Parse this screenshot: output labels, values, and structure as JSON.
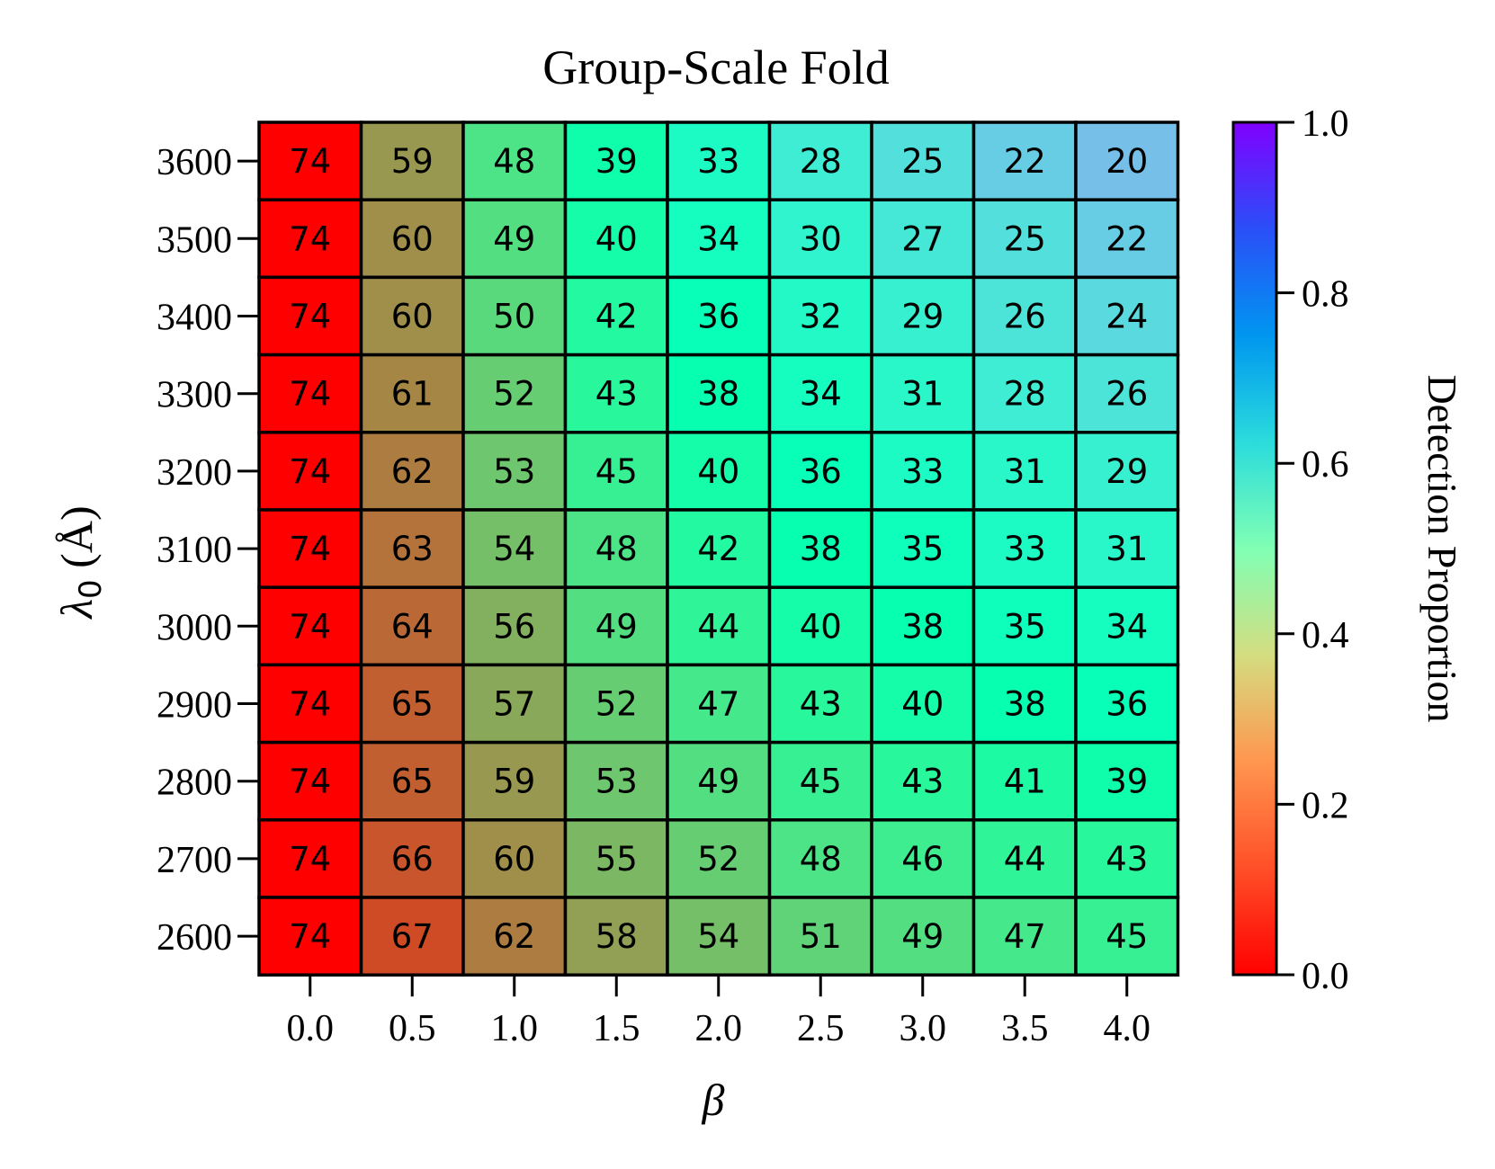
{
  "chart_data": {
    "type": "heatmap",
    "title": "Group-Scale Fold",
    "xlabel": "β",
    "ylabel": "λ",
    "ylabel_subscript": "0",
    "ylabel_unit": " (Å)",
    "x": [
      "0.0",
      "0.5",
      "1.0",
      "1.5",
      "2.0",
      "2.5",
      "3.0",
      "3.5",
      "4.0"
    ],
    "y": [
      "3600",
      "3500",
      "3400",
      "3300",
      "3200",
      "3100",
      "3000",
      "2900",
      "2800",
      "2700",
      "2600"
    ],
    "values": [
      [
        74,
        59,
        48,
        39,
        33,
        28,
        25,
        22,
        20
      ],
      [
        74,
        60,
        49,
        40,
        34,
        30,
        27,
        25,
        22
      ],
      [
        74,
        60,
        50,
        42,
        36,
        32,
        29,
        26,
        24
      ],
      [
        74,
        61,
        52,
        43,
        38,
        34,
        31,
        28,
        26
      ],
      [
        74,
        62,
        53,
        45,
        40,
        36,
        33,
        31,
        29
      ],
      [
        74,
        63,
        54,
        48,
        42,
        38,
        35,
        33,
        31
      ],
      [
        74,
        64,
        56,
        49,
        44,
        40,
        38,
        35,
        34
      ],
      [
        74,
        65,
        57,
        52,
        47,
        43,
        40,
        38,
        36
      ],
      [
        74,
        65,
        59,
        53,
        49,
        45,
        43,
        41,
        39
      ],
      [
        74,
        66,
        60,
        55,
        52,
        48,
        46,
        44,
        43
      ],
      [
        74,
        67,
        62,
        58,
        54,
        51,
        49,
        47,
        45
      ]
    ],
    "color_scale_max": 74,
    "colormap": "rainbow",
    "colorbar": {
      "label": "Detection Proportion",
      "range": [
        0.0,
        1.0
      ],
      "ticks": [
        "0.0",
        "0.2",
        "0.4",
        "0.6",
        "0.8",
        "1.0"
      ]
    },
    "grid": false,
    "cell_border_color": "#000000"
  }
}
